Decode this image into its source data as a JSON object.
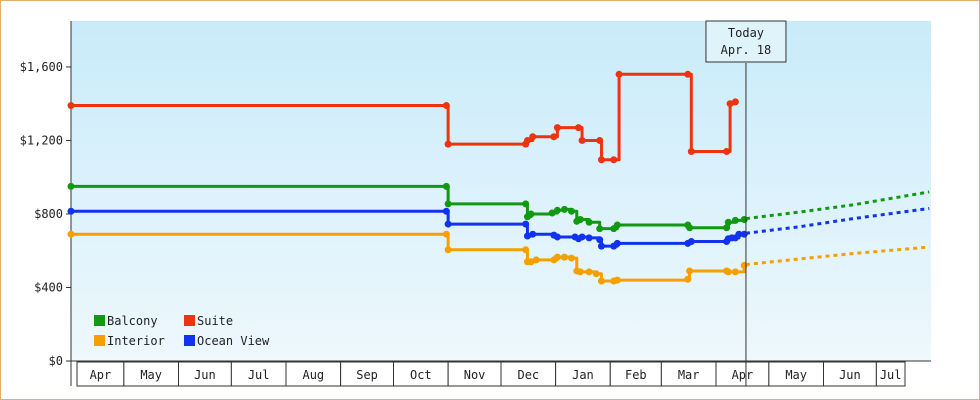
{
  "chart_data": {
    "type": "line",
    "step": true,
    "yticks": [
      "$0",
      "$400",
      "$800",
      "$1,200",
      "$1,600"
    ],
    "ylim": [
      0,
      1850
    ],
    "x_axis_months": [
      "Apr",
      "May",
      "Jun",
      "Jul",
      "Aug",
      "Sep",
      "Oct",
      "Nov",
      "Dec",
      "Jan",
      "Feb",
      "Mar",
      "Apr",
      "May",
      "Jun",
      "Jul"
    ],
    "xlim": [
      "2015-04-01",
      "2016-07-31"
    ],
    "today": {
      "label": "Today",
      "date_label": "Apr. 18",
      "date": "2016-04-18"
    },
    "legend": {
      "placement": "bottom-left"
    },
    "series": [
      {
        "name": "Balcony",
        "color": "#119911",
        "points": [
          [
            "2015-04-01",
            950
          ],
          [
            "2015-10-31",
            950
          ],
          [
            "2015-11-01",
            855
          ],
          [
            "2015-12-15",
            855
          ],
          [
            "2015-12-16",
            785
          ],
          [
            "2015-12-18",
            800
          ],
          [
            "2015-12-30",
            805
          ],
          [
            "2016-01-02",
            820
          ],
          [
            "2016-01-06",
            825
          ],
          [
            "2016-01-10",
            815
          ],
          [
            "2016-01-13",
            760
          ],
          [
            "2016-01-15",
            770
          ],
          [
            "2016-01-20",
            755
          ],
          [
            "2016-01-26",
            720
          ],
          [
            "2016-02-03",
            720
          ],
          [
            "2016-02-05",
            740
          ],
          [
            "2016-03-16",
            740
          ],
          [
            "2016-03-17",
            725
          ],
          [
            "2016-04-07",
            725
          ],
          [
            "2016-04-08",
            755
          ],
          [
            "2016-04-12",
            765
          ],
          [
            "2016-04-17",
            770
          ]
        ],
        "forecast": [
          [
            "2016-04-18",
            775
          ],
          [
            "2016-05-18",
            810
          ],
          [
            "2016-06-18",
            850
          ],
          [
            "2016-07-31",
            920
          ]
        ]
      },
      {
        "name": "Suite",
        "color": "#ee3311",
        "points": [
          [
            "2015-04-01",
            1390
          ],
          [
            "2015-10-31",
            1390
          ],
          [
            "2015-11-01",
            1180
          ],
          [
            "2015-12-15",
            1180
          ],
          [
            "2015-12-16",
            1200
          ],
          [
            "2015-12-19",
            1220
          ],
          [
            "2015-12-31",
            1220
          ],
          [
            "2016-01-02",
            1270
          ],
          [
            "2016-01-14",
            1270
          ],
          [
            "2016-01-16",
            1200
          ],
          [
            "2016-01-26",
            1200
          ],
          [
            "2016-01-27",
            1095
          ],
          [
            "2016-02-03",
            1095
          ],
          [
            "2016-02-06",
            1560
          ],
          [
            "2016-03-16",
            1560
          ],
          [
            "2016-03-18",
            1140
          ],
          [
            "2016-04-07",
            1140
          ],
          [
            "2016-04-09",
            1400
          ],
          [
            "2016-04-12",
            1410
          ]
        ],
        "forecast": []
      },
      {
        "name": "Interior",
        "color": "#f5a000",
        "points": [
          [
            "2015-04-01",
            690
          ],
          [
            "2015-10-31",
            690
          ],
          [
            "2015-11-01",
            605
          ],
          [
            "2015-12-15",
            605
          ],
          [
            "2015-12-16",
            540
          ],
          [
            "2015-12-18",
            540
          ],
          [
            "2015-12-21",
            550
          ],
          [
            "2015-12-31",
            550
          ],
          [
            "2016-01-02",
            565
          ],
          [
            "2016-01-06",
            565
          ],
          [
            "2016-01-10",
            560
          ],
          [
            "2016-01-13",
            490
          ],
          [
            "2016-01-15",
            485
          ],
          [
            "2016-01-20",
            485
          ],
          [
            "2016-01-24",
            475
          ],
          [
            "2016-01-27",
            435
          ],
          [
            "2016-02-03",
            435
          ],
          [
            "2016-02-05",
            440
          ],
          [
            "2016-03-16",
            445
          ],
          [
            "2016-03-17",
            490
          ],
          [
            "2016-04-07",
            490
          ],
          [
            "2016-04-08",
            485
          ],
          [
            "2016-04-12",
            485
          ],
          [
            "2016-04-17",
            520
          ]
        ],
        "forecast": [
          [
            "2016-04-18",
            525
          ],
          [
            "2016-05-18",
            555
          ],
          [
            "2016-06-18",
            585
          ],
          [
            "2016-07-31",
            620
          ]
        ]
      },
      {
        "name": "Ocean View",
        "color": "#1133ee",
        "points": [
          [
            "2015-04-01",
            815
          ],
          [
            "2015-10-31",
            815
          ],
          [
            "2015-11-01",
            745
          ],
          [
            "2015-12-15",
            745
          ],
          [
            "2015-12-16",
            680
          ],
          [
            "2015-12-19",
            690
          ],
          [
            "2015-12-31",
            685
          ],
          [
            "2016-01-02",
            675
          ],
          [
            "2016-01-12",
            675
          ],
          [
            "2016-01-14",
            665
          ],
          [
            "2016-01-16",
            675
          ],
          [
            "2016-01-20",
            670
          ],
          [
            "2016-01-26",
            660
          ],
          [
            "2016-01-27",
            625
          ],
          [
            "2016-02-03",
            625
          ],
          [
            "2016-02-05",
            640
          ],
          [
            "2016-03-16",
            640
          ],
          [
            "2016-03-18",
            650
          ],
          [
            "2016-04-07",
            650
          ],
          [
            "2016-04-08",
            665
          ],
          [
            "2016-04-10",
            670
          ],
          [
            "2016-04-12",
            670
          ],
          [
            "2016-04-14",
            690
          ],
          [
            "2016-04-17",
            690
          ]
        ],
        "forecast": [
          [
            "2016-04-18",
            695
          ],
          [
            "2016-05-18",
            730
          ],
          [
            "2016-06-18",
            775
          ],
          [
            "2016-07-31",
            830
          ]
        ]
      }
    ]
  },
  "legend_items": [
    {
      "label": "Balcony",
      "color": "#119911"
    },
    {
      "label": "Suite",
      "color": "#ee3311"
    },
    {
      "label": "Interior",
      "color": "#f5a000"
    },
    {
      "label": "Ocean View",
      "color": "#1133ee"
    }
  ]
}
